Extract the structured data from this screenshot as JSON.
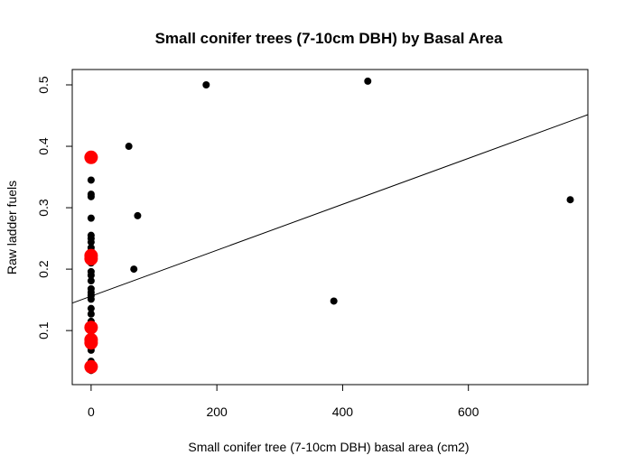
{
  "chart_data": {
    "type": "scatter",
    "title": "Small conifer trees (7-10cm DBH) by Basal Area",
    "xlabel": "Small conifer tree (7-10cm DBH) basal area (cm2)",
    "ylabel": "Raw ladder fuels",
    "xlim": [
      -30,
      790
    ],
    "ylim": [
      0.012,
      0.525
    ],
    "xticks": [
      0,
      200,
      400,
      600
    ],
    "yticks": [
      0.1,
      0.2,
      0.3,
      0.4,
      0.5
    ],
    "xtick_labels": [
      "0",
      "200",
      "400",
      "600"
    ],
    "ytick_labels": [
      "0.1",
      "0.2",
      "0.3",
      "0.4",
      "0.5"
    ],
    "grid": false,
    "legend": "none",
    "series": [
      {
        "color": "#000000",
        "marker_size": "small",
        "points": [
          {
            "x": 0,
            "y": 0.345
          },
          {
            "x": 0,
            "y": 0.322
          },
          {
            "x": 0,
            "y": 0.318
          },
          {
            "x": 0,
            "y": 0.283
          },
          {
            "x": 0,
            "y": 0.255
          },
          {
            "x": 0,
            "y": 0.25
          },
          {
            "x": 0,
            "y": 0.244
          },
          {
            "x": 0,
            "y": 0.235
          },
          {
            "x": 0,
            "y": 0.23
          },
          {
            "x": 0,
            "y": 0.21
          },
          {
            "x": 0,
            "y": 0.196
          },
          {
            "x": 0,
            "y": 0.19
          },
          {
            "x": 0,
            "y": 0.181
          },
          {
            "x": 0,
            "y": 0.168
          },
          {
            "x": 0,
            "y": 0.162
          },
          {
            "x": 0,
            "y": 0.157
          },
          {
            "x": 0,
            "y": 0.151
          },
          {
            "x": 0,
            "y": 0.136
          },
          {
            "x": 0,
            "y": 0.127
          },
          {
            "x": 0,
            "y": 0.115
          },
          {
            "x": 0,
            "y": 0.098
          },
          {
            "x": 0,
            "y": 0.068
          },
          {
            "x": 0,
            "y": 0.05
          },
          {
            "x": 0,
            "y": 0.035
          },
          {
            "x": 60,
            "y": 0.4
          },
          {
            "x": 68,
            "y": 0.2
          },
          {
            "x": 74,
            "y": 0.287
          },
          {
            "x": 183,
            "y": 0.5
          },
          {
            "x": 386,
            "y": 0.148
          },
          {
            "x": 440,
            "y": 0.506
          },
          {
            "x": 762,
            "y": 0.313
          }
        ]
      },
      {
        "color": "#ff0000",
        "marker_size": "large",
        "points": [
          {
            "x": 0,
            "y": 0.382
          },
          {
            "x": 0,
            "y": 0.222
          },
          {
            "x": 0,
            "y": 0.217
          },
          {
            "x": 0,
            "y": 0.105
          },
          {
            "x": 0,
            "y": 0.085
          },
          {
            "x": 0,
            "y": 0.08
          },
          {
            "x": 0,
            "y": 0.041
          }
        ]
      }
    ],
    "regression_line": {
      "intercept": 0.156,
      "slope": 0.000374,
      "color": "#000000"
    }
  }
}
